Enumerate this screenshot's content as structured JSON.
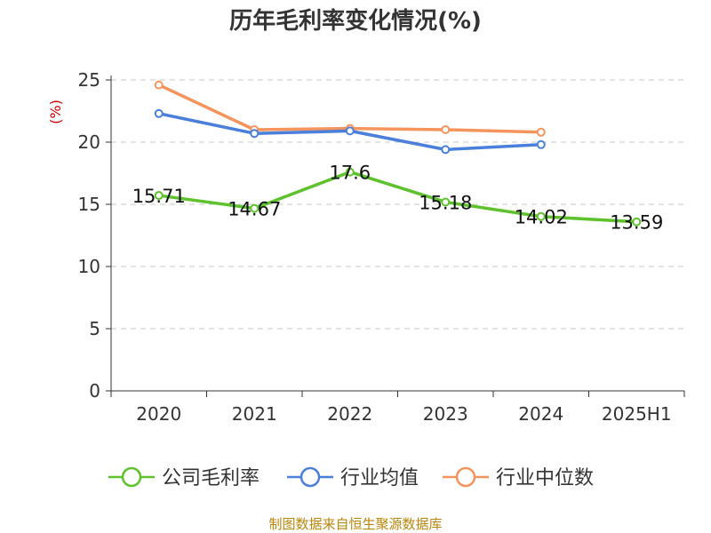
{
  "chart_data": {
    "type": "line",
    "title": "历年毛利率变化情况(%)",
    "ylabel": "(%)",
    "xlabel": "",
    "categories": [
      "2020",
      "2021",
      "2022",
      "2023",
      "2024",
      "2025H1"
    ],
    "yticks": [
      "0",
      "5",
      "10",
      "15",
      "20",
      "25"
    ],
    "ylim": [
      0,
      25
    ],
    "grid": true,
    "legend_position": "bottom",
    "series": [
      {
        "name": "公司毛利率",
        "color": "#5ec22d",
        "values": [
          15.71,
          14.67,
          17.6,
          15.18,
          14.02,
          13.59
        ],
        "labels": [
          "15.71",
          "14.67",
          "17.6",
          "15.18",
          "14.02",
          "13.59"
        ]
      },
      {
        "name": "行业均值",
        "color": "#4a7fdb",
        "values": [
          22.3,
          20.7,
          20.9,
          19.4,
          19.8,
          null
        ]
      },
      {
        "name": "行业中位数",
        "color": "#f5945c",
        "values": [
          24.6,
          21.0,
          21.1,
          21.0,
          20.8,
          null
        ]
      }
    ]
  },
  "source": "制图数据来自恒生聚源数据库"
}
